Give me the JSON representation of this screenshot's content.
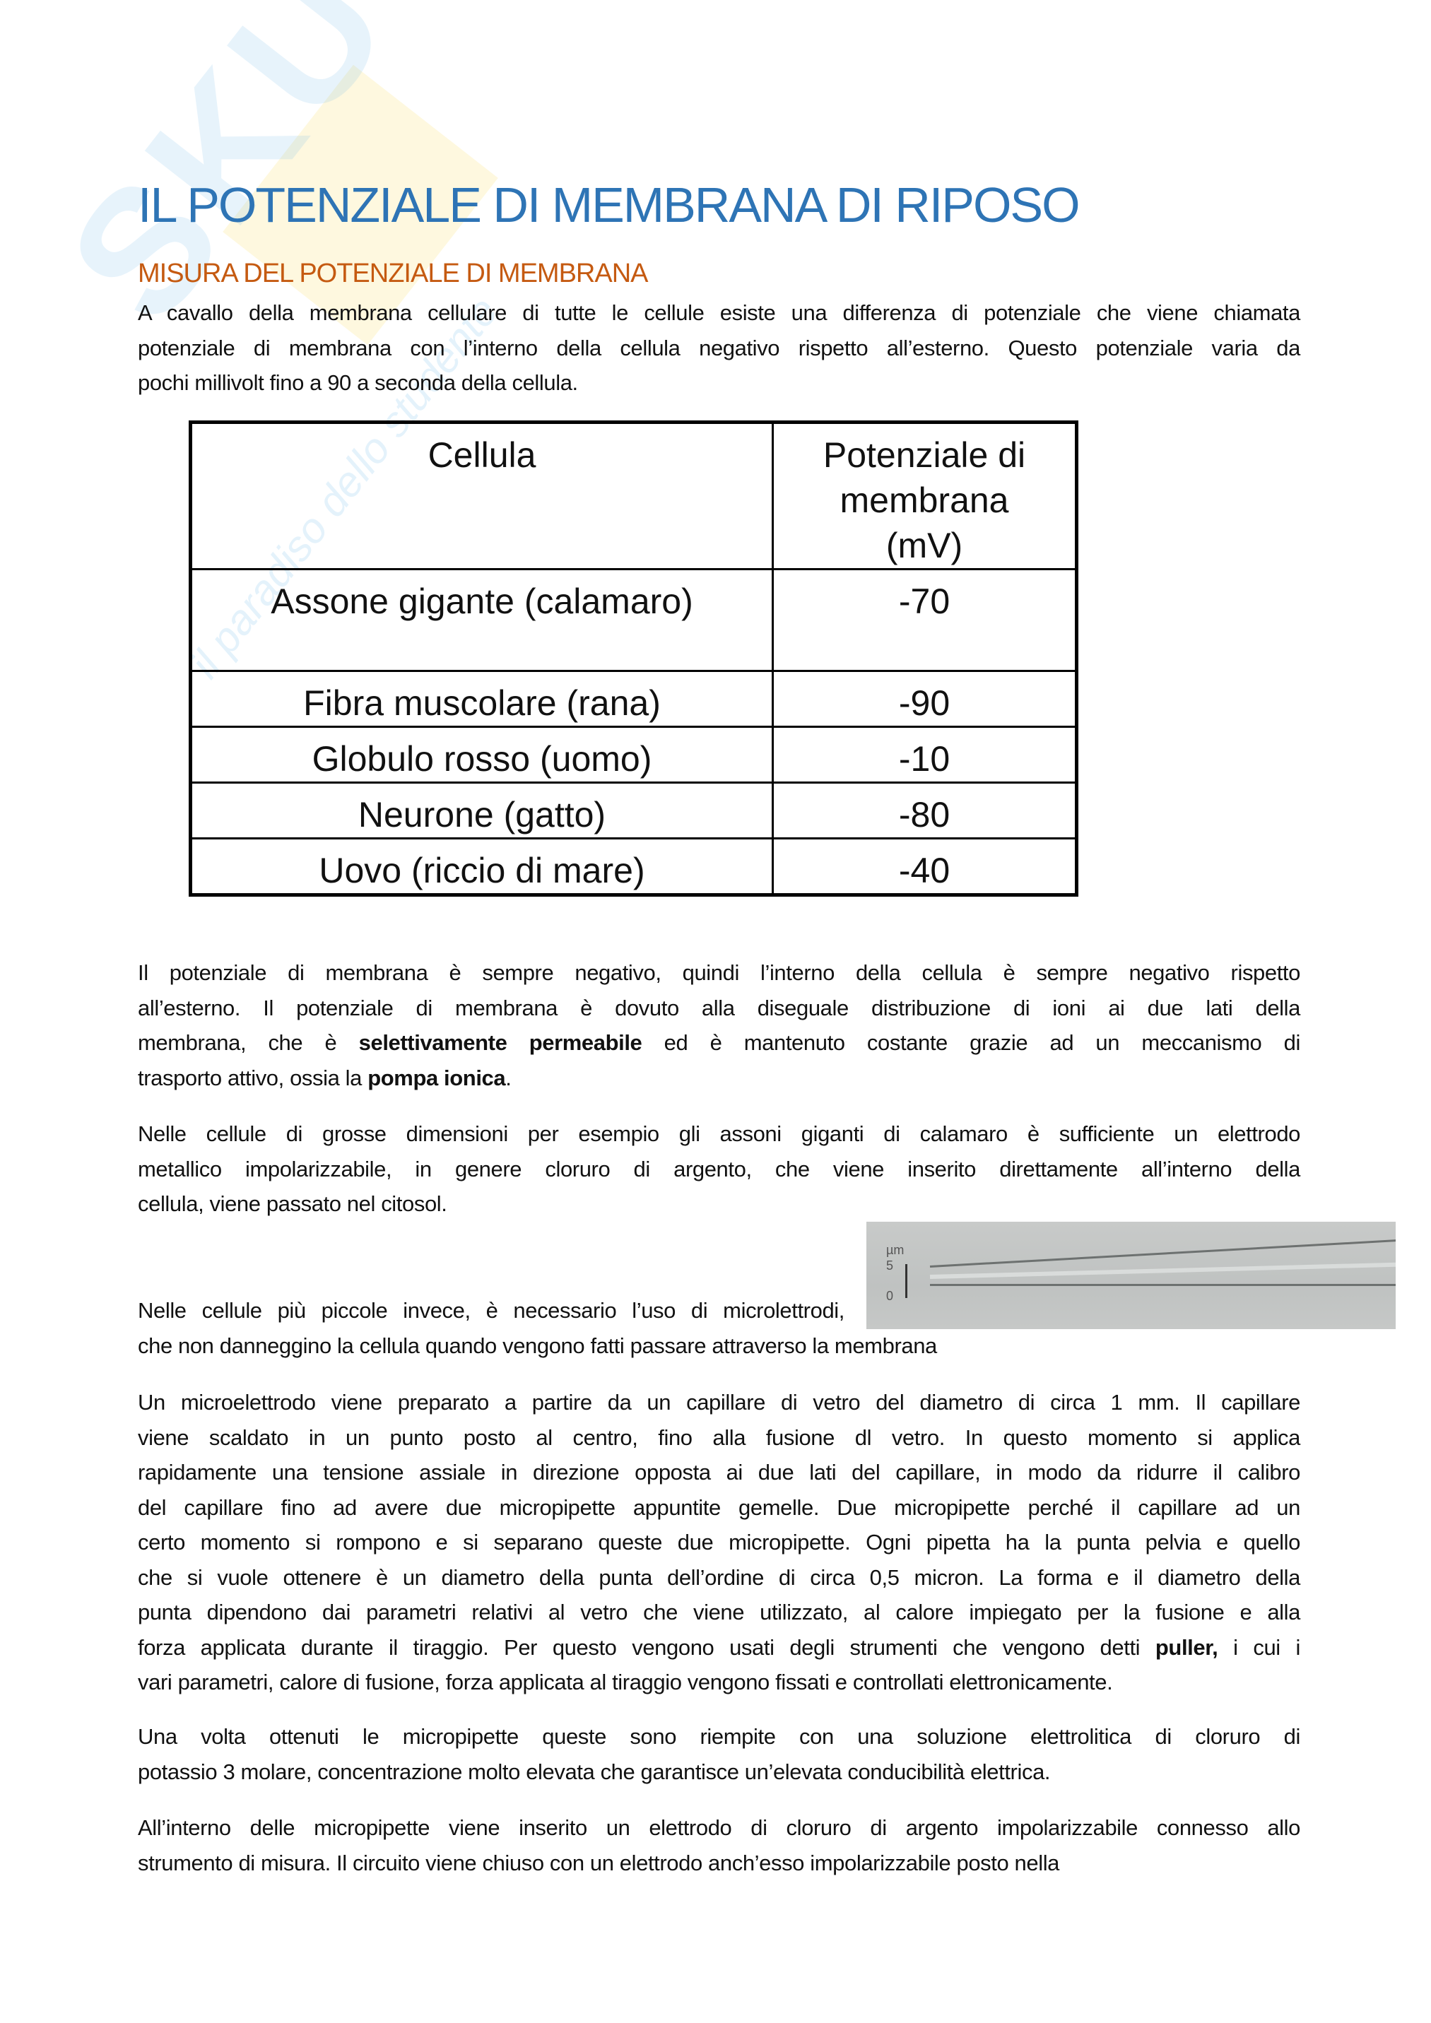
{
  "watermark": {
    "brand": "Skuola.net",
    "tagline": "il paradiso dello studente"
  },
  "title": "IL POTENZIALE DI MEMBRANA DI RIPOSO",
  "subtitle": "MISURA DEL POTENZIALE DI MEMBRANA",
  "intro": [
    [
      {
        "t": "A cavallo della membrana cellulare di tutte le cellule esiste una differenza di potenziale che viene chiamata"
      }
    ],
    [
      {
        "t": "potenziale di membrana con l’interno della cellula negativo rispetto all’esterno. Questo potenziale varia da"
      }
    ],
    [
      {
        "t": "pochi millivolt fino a 90 a seconda della cellula."
      }
    ]
  ],
  "table": {
    "headers": [
      "Cellula",
      "Potenziale di membrana (mV)"
    ],
    "rows": [
      [
        "Assone gigante (calamaro)",
        "-70"
      ],
      [
        "Fibra muscolare (rana)",
        "-90"
      ],
      [
        "Globulo rosso (uomo)",
        "-10"
      ],
      [
        "Neurone (gatto)",
        "-80"
      ],
      [
        "Uovo (riccio di mare)",
        "-40"
      ]
    ]
  },
  "paragraphs": [
    [
      [
        {
          "t": "Il potenziale di membrana è sempre negativo, quindi l’interno della cellula è sempre negativo rispetto"
        }
      ],
      [
        {
          "t": "all’esterno. Il potenziale di membrana è dovuto alla diseguale distribuzione di ioni ai due lati della"
        }
      ],
      [
        {
          "t": "membrana, che è "
        },
        {
          "t": "selettivamente permeabile",
          "b": true
        },
        {
          "t": " ed è mantenuto costante grazie ad un meccanismo di"
        }
      ],
      [
        {
          "t": "trasporto attivo, ossia la "
        },
        {
          "t": "pompa ionica",
          "b": true
        },
        {
          "t": "."
        }
      ]
    ],
    [
      [
        {
          "t": "Nelle cellule di grosse dimensioni per esempio gli assoni giganti di calamaro è sufficiente un elettrodo"
        }
      ],
      [
        {
          "t": "metallico impolarizzabile, in genere cloruro di argento, che viene inserito direttamente all’interno della"
        }
      ],
      [
        {
          "t": "cellula, viene passato nel citosol."
        }
      ]
    ],
    [
      [
        {
          "t": "Nelle cellule più piccole invece, è necessario l’uso di microlettrodi,"
        }
      ],
      [
        {
          "t": "che non danneggino la cellula quando vengono fatti passare attraverso la membrana"
        }
      ]
    ],
    [
      [
        {
          "t": "Un microelettrodo viene preparato a partire da un capillare di vetro del diametro di circa 1 mm. Il capillare"
        }
      ],
      [
        {
          "t": "viene scaldato in un punto posto al centro, fino alla fusione dl vetro. In questo momento si applica"
        }
      ],
      [
        {
          "t": "rapidamente una tensione assiale in direzione opposta ai due lati del capillare, in modo da ridurre il calibro"
        }
      ],
      [
        {
          "t": "del capillare fino ad avere due micropipette appuntite gemelle. Due micropipette perché il capillare ad un"
        }
      ],
      [
        {
          "t": "certo momento si rompono e si separano queste due micropipette. Ogni pipetta ha la punta pelvia e quello"
        }
      ],
      [
        {
          "t": "che si vuole ottenere è un diametro della punta dell’ordine di circa 0,5 micron. La forma e il diametro della"
        }
      ],
      [
        {
          "t": "punta dipendono dai parametri relativi al vetro che viene utilizzato, al calore impiegato per la fusione e alla"
        }
      ],
      [
        {
          "t": "forza applicata durante il tiraggio. Per questo vengono usati degli strumenti che vengono detti "
        },
        {
          "t": "puller,",
          "b": true
        },
        {
          "t": " i cui i"
        }
      ],
      [
        {
          "t": "vari parametri, calore di fusione, forza applicata al tiraggio vengono fissati e controllati elettronicamente."
        }
      ]
    ],
    [
      [
        {
          "t": "Una volta ottenuti le micropipette queste sono riempite con una soluzione elettrolitica di cloruro di"
        }
      ],
      [
        {
          "t": "potassio 3 molare, concentrazione molto elevata che garantisce un’elevata conducibilità elettrica."
        }
      ]
    ],
    [
      [
        {
          "t": "All’interno delle micropipette viene inserito un elettrodo di cloruro di argento impolarizzabile connesso allo"
        }
      ],
      [
        {
          "t": "strumento di misura. Il circuito viene chiuso con un elettrodo anch’esso impolarizzabile posto nella"
        }
      ]
    ]
  ],
  "image": {
    "scale_unit": "µm",
    "scale_top": "5",
    "scale_bottom": "0"
  }
}
